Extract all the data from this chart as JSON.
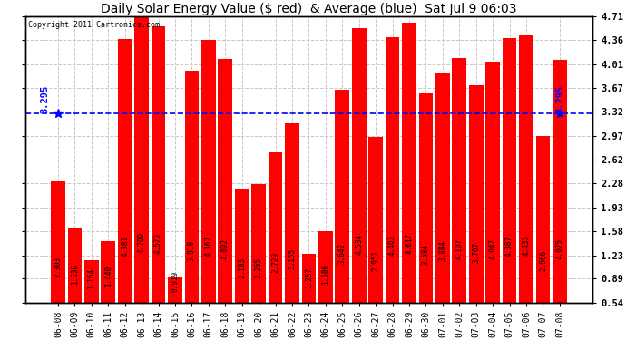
{
  "title": "Daily Solar Energy Value ($ red)  & Average (blue)  Sat Jul 9 06:03",
  "copyright": "Copyright 2011 Cartronics.com",
  "average": 3.295,
  "average_label": "3.295",
  "categories": [
    "06-08",
    "06-09",
    "06-10",
    "06-11",
    "06-12",
    "06-13",
    "06-14",
    "06-15",
    "06-16",
    "06-17",
    "06-18",
    "06-19",
    "06-20",
    "06-21",
    "06-22",
    "06-23",
    "06-24",
    "06-25",
    "06-26",
    "06-27",
    "06-28",
    "06-29",
    "06-30",
    "07-01",
    "07-02",
    "07-03",
    "07-04",
    "07-05",
    "07-06",
    "07-07",
    "07-08"
  ],
  "values": [
    2.303,
    1.636,
    1.164,
    1.44,
    4.381,
    4.709,
    4.57,
    0.919,
    3.918,
    4.367,
    4.092,
    2.193,
    2.265,
    2.729,
    3.155,
    1.257,
    1.586,
    3.642,
    4.534,
    2.951,
    4.403,
    4.617,
    3.584,
    3.884,
    4.107,
    3.707,
    4.047,
    4.387,
    4.433,
    2.966,
    4.075
  ],
  "bar_color": "#ff0000",
  "line_color": "#0000ff",
  "background_color": "#ffffff",
  "plot_bg_color": "#ffffff",
  "grid_color": "#c8c8c8",
  "ylim_min": 0.54,
  "ylim_max": 4.71,
  "yticks": [
    0.54,
    0.89,
    1.23,
    1.58,
    1.93,
    2.28,
    2.62,
    2.97,
    3.32,
    3.67,
    4.01,
    4.36,
    4.71
  ],
  "title_fontsize": 10,
  "tick_fontsize": 7.5,
  "value_fontsize": 5.5,
  "copyright_fontsize": 6
}
